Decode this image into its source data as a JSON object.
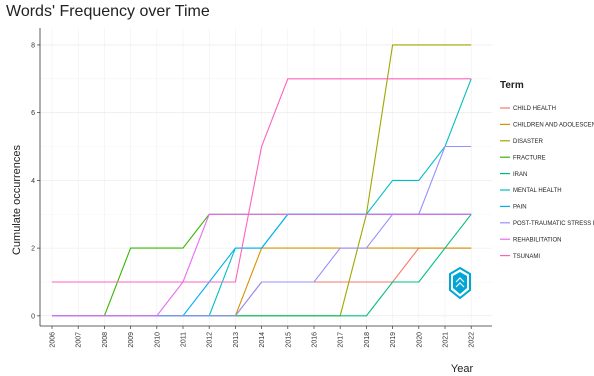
{
  "chart_data": {
    "type": "line",
    "title": "Words' Frequency over Time",
    "xlabel": "Year",
    "ylabel": "Cumulate occurrences",
    "x": [
      2006,
      2007,
      2008,
      2009,
      2010,
      2011,
      2012,
      2013,
      2014,
      2015,
      2016,
      2017,
      2018,
      2019,
      2020,
      2021,
      2022
    ],
    "yticks": [
      0,
      2,
      4,
      6,
      8
    ],
    "ylim": [
      -0.3,
      8.5
    ],
    "grid": true,
    "legend_title": "Term",
    "legend_position": "right",
    "series": [
      {
        "name": "CHILD HEALTH",
        "color": "#f8766d",
        "values": [
          0,
          0,
          0,
          0,
          0,
          0,
          0,
          0,
          1,
          1,
          1,
          1,
          1,
          1,
          2,
          2,
          2
        ]
      },
      {
        "name": "CHILDREN AND ADOLESCENTS",
        "color": "#d89000",
        "values": [
          0,
          0,
          0,
          0,
          0,
          0,
          0,
          0,
          2,
          2,
          2,
          2,
          2,
          2,
          2,
          2,
          2
        ]
      },
      {
        "name": "DISASTER",
        "color": "#a3a500",
        "values": [
          0,
          0,
          0,
          0,
          0,
          0,
          0,
          0,
          0,
          0,
          0,
          0,
          3,
          8,
          8,
          8,
          8
        ]
      },
      {
        "name": "FRACTURE",
        "color": "#39b600",
        "values": [
          0,
          0,
          0,
          2,
          2,
          2,
          3,
          3,
          3,
          3,
          3,
          3,
          3,
          3,
          3,
          3,
          3
        ]
      },
      {
        "name": "IRAN",
        "color": "#00bf7d",
        "values": [
          0,
          0,
          0,
          0,
          0,
          0,
          0,
          0,
          0,
          0,
          0,
          0,
          0,
          1,
          1,
          2,
          3
        ]
      },
      {
        "name": "MENTAL HEALTH",
        "color": "#00bfc4",
        "values": [
          0,
          0,
          0,
          0,
          0,
          0,
          0,
          2,
          2,
          3,
          3,
          3,
          3,
          4,
          4,
          5,
          7
        ]
      },
      {
        "name": "PAIN",
        "color": "#00b0f6",
        "values": [
          0,
          0,
          0,
          0,
          0,
          0,
          1,
          2,
          2,
          3,
          3,
          3,
          3,
          3,
          3,
          3,
          3
        ]
      },
      {
        "name": "POST-TRAUMATIC STRESS DISORD",
        "color": "#9590ff",
        "values": [
          0,
          0,
          0,
          0,
          0,
          0,
          0,
          0,
          1,
          1,
          1,
          2,
          2,
          3,
          3,
          5,
          5
        ]
      },
      {
        "name": "REHABILITATION",
        "color": "#e76bf3",
        "values": [
          0,
          0,
          0,
          0,
          0,
          1,
          3,
          3,
          3,
          3,
          3,
          3,
          3,
          3,
          3,
          3,
          3
        ]
      },
      {
        "name": "TSUNAMI",
        "color": "#ff62bc",
        "values": [
          1,
          1,
          1,
          1,
          1,
          1,
          1,
          1,
          5,
          7,
          7,
          7,
          7,
          7,
          7,
          7,
          7
        ]
      }
    ]
  },
  "watermark": {
    "icon": "shield-logo-icon",
    "color": "#00a6d6"
  }
}
